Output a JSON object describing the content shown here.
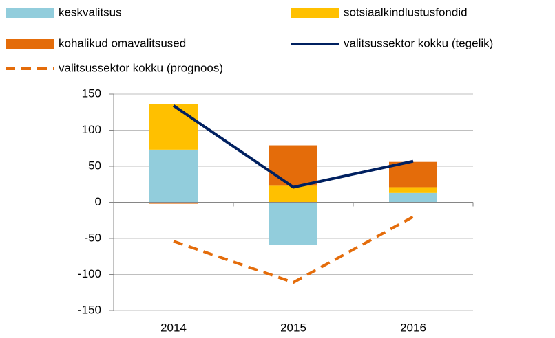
{
  "chart_data": {
    "type": "bar",
    "stacked": true,
    "categories": [
      "2014",
      "2015",
      "2016"
    ],
    "series": [
      {
        "name": "keskvalitsus",
        "color": "#92cddc",
        "values": [
          73,
          -59,
          13
        ]
      },
      {
        "name": "sotsiaalkindlustusfondid",
        "color": "#ffc000",
        "values": [
          63,
          23,
          8
        ]
      },
      {
        "name": "kohalikud omavalitsused",
        "color": "#e46c0a",
        "values": [
          -2,
          56,
          35
        ]
      },
      {
        "name": "valitsussektor kokku (tegelik)",
        "color": "#002060",
        "type": "line",
        "style": "solid",
        "values": [
          134,
          21,
          57
        ]
      },
      {
        "name": "valitsussektor kokku (prognoos)",
        "color": "#e46c0a",
        "type": "line",
        "style": "dashed",
        "values": [
          -54,
          -111,
          -20
        ]
      }
    ],
    "ylim": [
      -150,
      150
    ],
    "yticks": [
      -150,
      -100,
      -50,
      0,
      50,
      100,
      150
    ],
    "grid": true
  }
}
